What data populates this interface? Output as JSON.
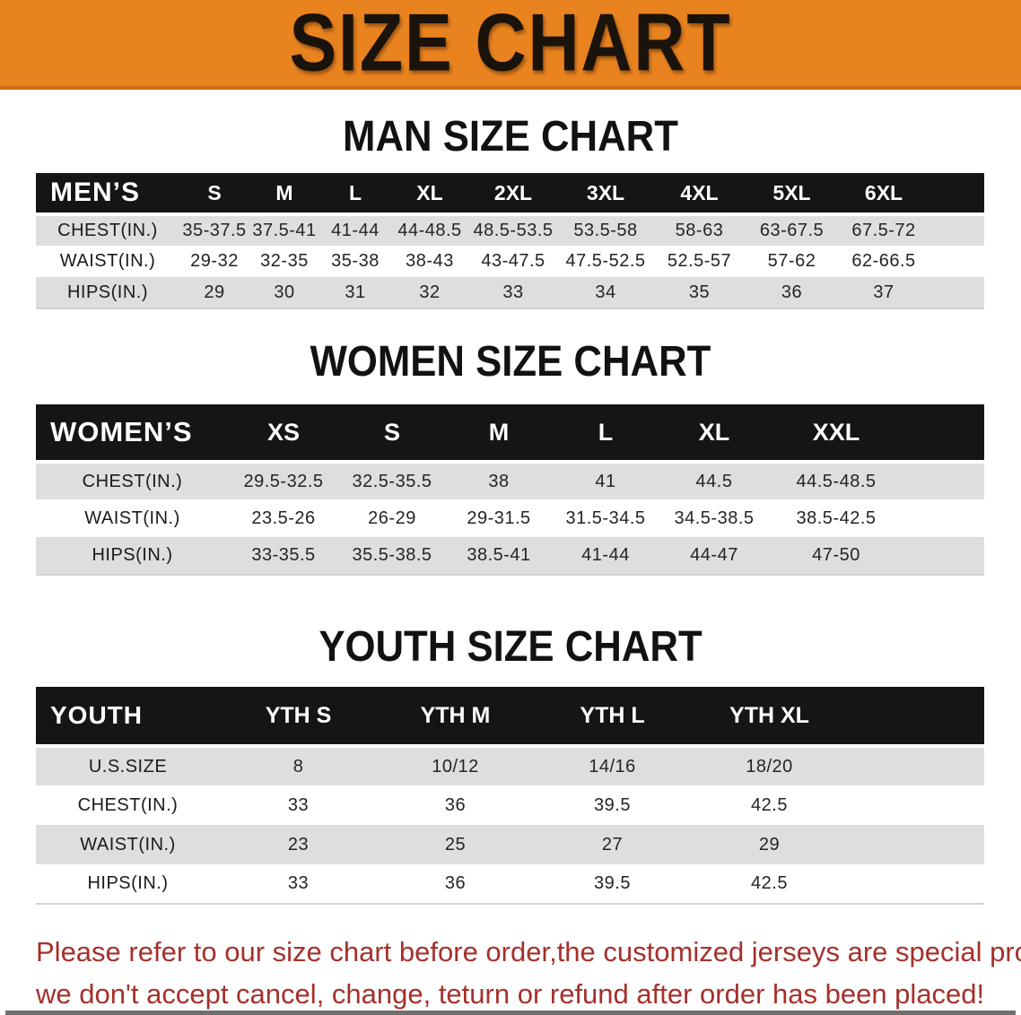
{
  "banner": {
    "title": "SIZE CHART",
    "bg_color": "#E8831F",
    "text_color": "#1a130c"
  },
  "sections": [
    {
      "title": "MAN SIZE CHART",
      "header_label": "MEN’S",
      "columns": [
        "S",
        "M",
        "L",
        "XL",
        "2XL",
        "3XL",
        "4XL",
        "5XL",
        "6XL"
      ],
      "rows": [
        {
          "label": "CHEST(IN.)",
          "values": [
            "35-37.5",
            "37.5-41",
            "41-44",
            "44-48.5",
            "48.5-53.5",
            "53.5-58",
            "58-63",
            "63-67.5",
            "67.5-72"
          ]
        },
        {
          "label": "WAIST(IN.)",
          "values": [
            "29-32",
            "32-35",
            "35-38",
            "38-43",
            "43-47.5",
            "47.5-52.5",
            "52.5-57",
            "57-62",
            "62-66.5"
          ]
        },
        {
          "label": "HIPS(IN.)",
          "values": [
            "29",
            "30",
            "31",
            "32",
            "33",
            "34",
            "35",
            "36",
            "37"
          ]
        }
      ]
    },
    {
      "title": "WOMEN SIZE CHART",
      "header_label": "WOMEN’S",
      "columns": [
        "XS",
        "S",
        "M",
        "L",
        "XL",
        "XXL"
      ],
      "rows": [
        {
          "label": "CHEST(IN.)",
          "values": [
            "29.5-32.5",
            "32.5-35.5",
            "38",
            "41",
            "44.5",
            "44.5-48.5"
          ]
        },
        {
          "label": "WAIST(IN.)",
          "values": [
            "23.5-26",
            "26-29",
            "29-31.5",
            "31.5-34.5",
            "34.5-38.5",
            "38.5-42.5"
          ]
        },
        {
          "label": "HIPS(IN.)",
          "values": [
            "33-35.5",
            "35.5-38.5",
            "38.5-41",
            "41-44",
            "44-47",
            "47-50"
          ]
        }
      ]
    },
    {
      "title": "YOUTH SIZE CHART",
      "header_label": "YOUTH",
      "columns": [
        "YTH S",
        "YTH M",
        "YTH L",
        "YTH XL"
      ],
      "rows": [
        {
          "label": "U.S.SIZE",
          "values": [
            "8",
            "10/12",
            "14/16",
            "18/20"
          ]
        },
        {
          "label": "CHEST(IN.)",
          "values": [
            "33",
            "36",
            "39.5",
            "42.5"
          ]
        },
        {
          "label": "WAIST(IN.)",
          "values": [
            "23",
            "25",
            "27",
            "29"
          ]
        },
        {
          "label": "HIPS(IN.)",
          "values": [
            "33",
            "36",
            "39.5",
            "42.5"
          ]
        }
      ]
    }
  ],
  "table_style": {
    "header_bg_color": "#161514",
    "header_text_color": "#ffffff",
    "alt_row_color": "#DEDEDF"
  },
  "disclaimer": {
    "line1": "Please refer to our size chart before order,the customized jerseys are special products,",
    "line2": "we don't accept cancel, change, teturn or refund after order has been placed!",
    "text_color": "#A5302C"
  }
}
